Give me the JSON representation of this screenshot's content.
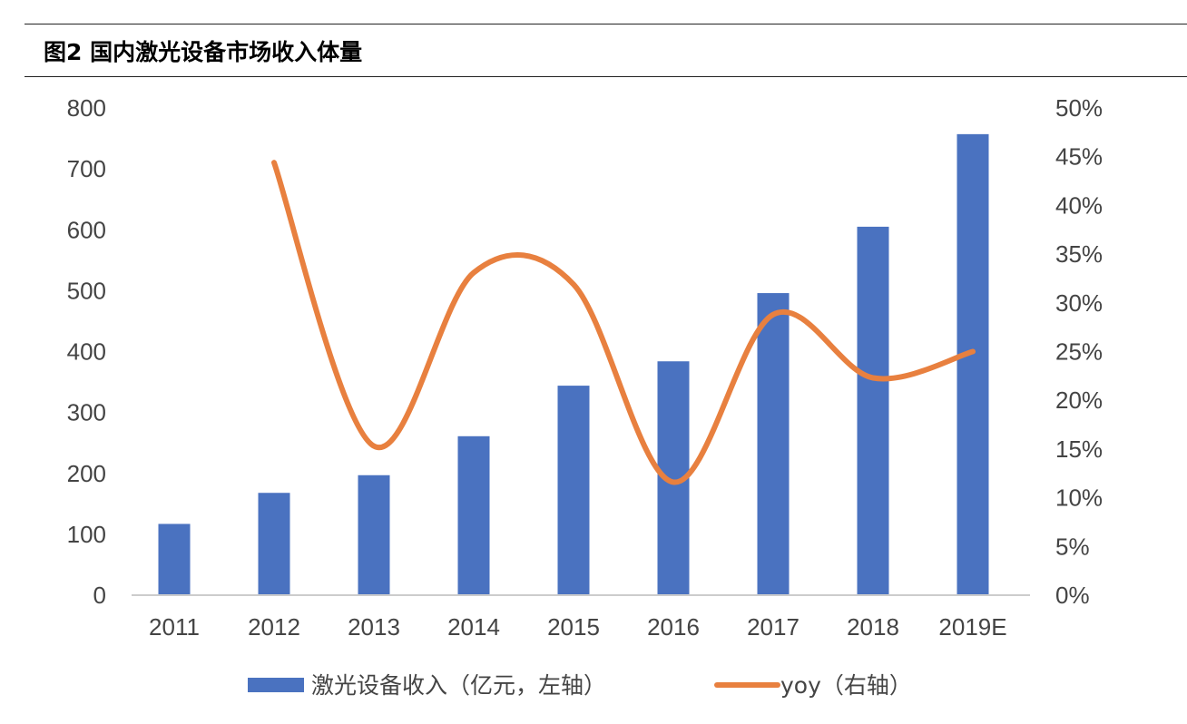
{
  "title": "图2  国内激光设备市场收入体量",
  "chart_data": {
    "type": "bar+line",
    "title": "图2  国内激光设备市场收入体量",
    "categories": [
      "2011",
      "2012",
      "2013",
      "2014",
      "2015",
      "2016",
      "2017",
      "2018",
      "2019E"
    ],
    "series": [
      {
        "name": "激光设备收入（亿元，左轴）",
        "type": "bar",
        "axis": "left",
        "color": "#4A72C0",
        "values": [
          117,
          168,
          197,
          261,
          344,
          384,
          496,
          605,
          757
        ]
      },
      {
        "name": "yoy（右轴）",
        "type": "line",
        "axis": "right",
        "color": "#E8803F",
        "values": [
          null,
          44.4,
          15.3,
          33.1,
          31.9,
          11.6,
          28.8,
          22.3,
          25.0
        ]
      }
    ],
    "left_axis": {
      "ylim": [
        0,
        800
      ],
      "ticks": [
        "0",
        "100",
        "200",
        "300",
        "400",
        "500",
        "600",
        "700",
        "800"
      ]
    },
    "right_axis": {
      "ylim": [
        0,
        50
      ],
      "ticks": [
        "0%",
        "5%",
        "10%",
        "15%",
        "20%",
        "25%",
        "30%",
        "35%",
        "40%",
        "45%",
        "50%"
      ]
    },
    "grid": false,
    "legend_position": "bottom"
  }
}
